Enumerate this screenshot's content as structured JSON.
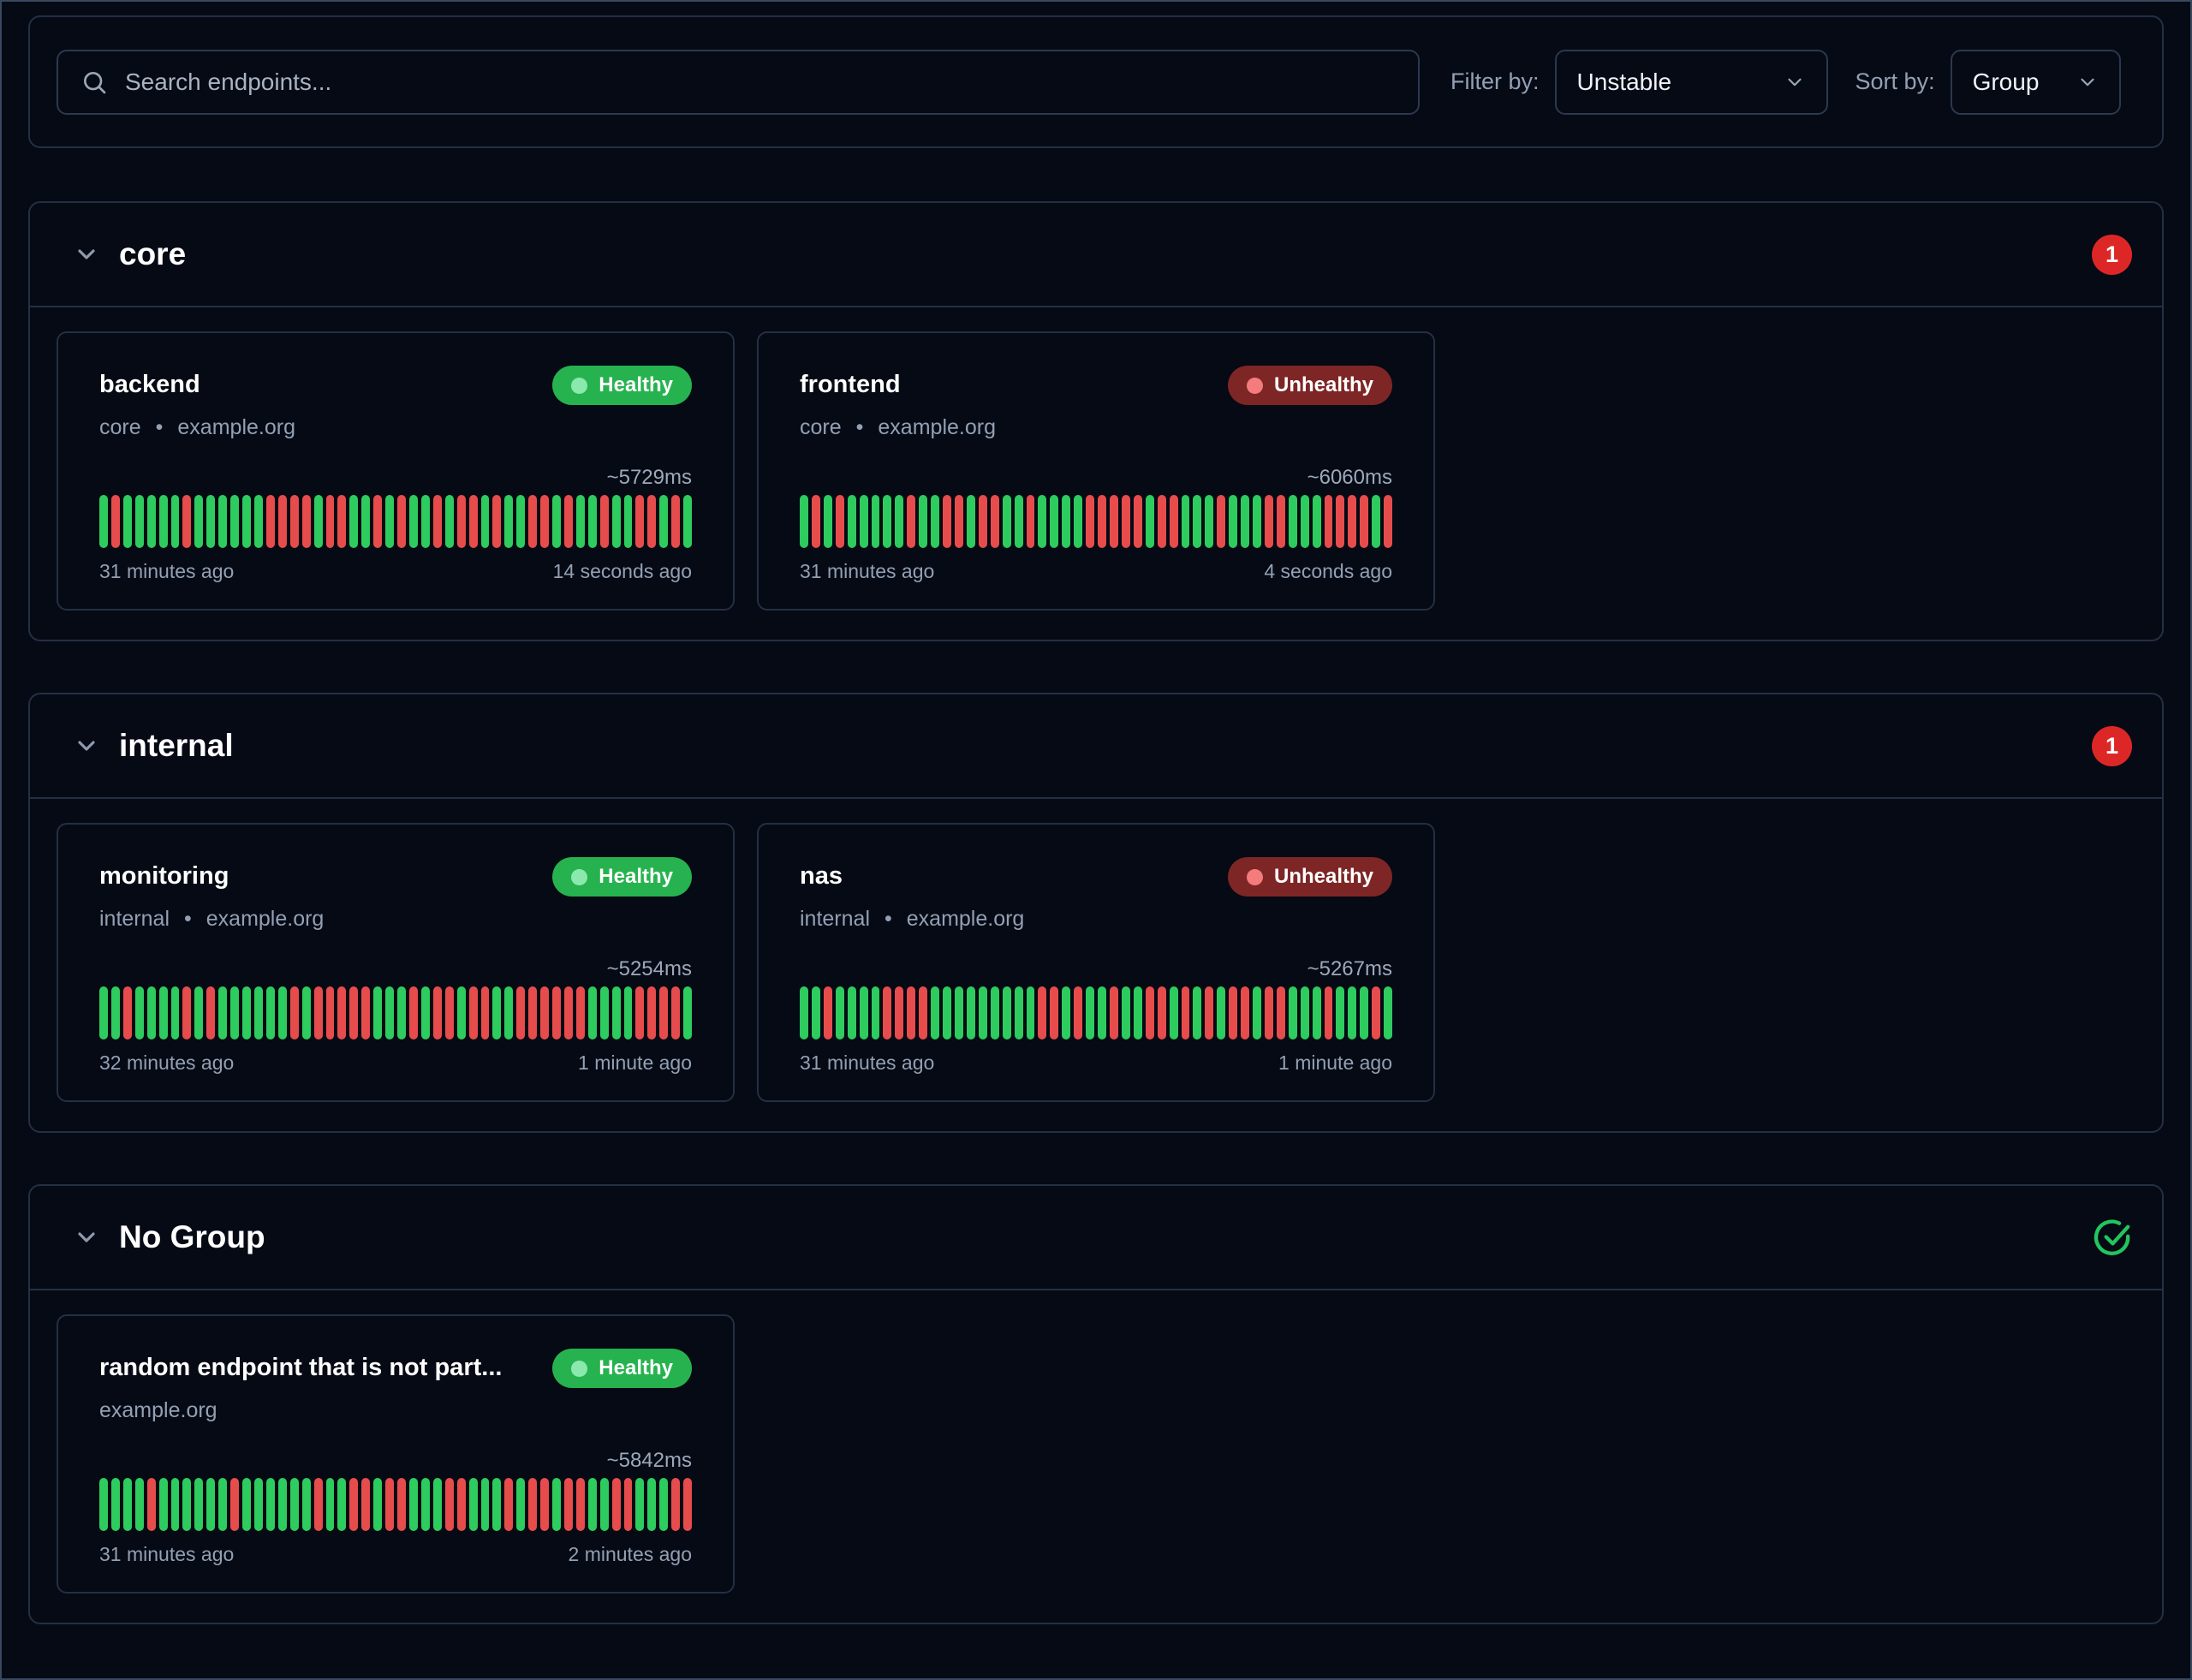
{
  "topbar": {
    "search_placeholder": "Search endpoints...",
    "filter_label": "Filter by:",
    "filter_value": "Unstable",
    "sort_label": "Sort by:",
    "sort_value": "Group"
  },
  "icons": {
    "search": "search-icon",
    "select_chevron": "chevron-down-icon",
    "group_chevron": "chevron-down-icon",
    "no_group_status": "check-circle-icon"
  },
  "colors": {
    "background": "#050a14",
    "border": "#242f46",
    "bar_success": "#2ecc5e",
    "bar_failure": "#e74c4c",
    "badge_healthy": "#26b34f",
    "badge_unhealthy": "#7e2626",
    "count_badge": "#dd2727",
    "check_icon": "#22c55e",
    "muted_text": "#93a0b4"
  },
  "groups": [
    {
      "name": "core",
      "unhealthy_count": "1",
      "cards": [
        {
          "title": "backend",
          "status": "Healthy",
          "group": "core",
          "separator": "•",
          "host": "example.org",
          "avg_response": "~5729ms",
          "oldest": "31 minutes ago",
          "newest": "14 seconds ago",
          "bars": "GRGGGGGRGGGGGGRRRRGRRGGRGRGGRGRRGRGGRRGRGGRGGRRGRG"
        },
        {
          "title": "frontend",
          "status": "Unhealthy",
          "group": "core",
          "separator": "•",
          "host": "example.org",
          "avg_response": "~6060ms",
          "oldest": "31 minutes ago",
          "newest": "4 seconds ago",
          "bars": "GRGRGGGGGRGGRRGRRGGRGGGGRRRRRGRRGGGRGGGRRGGGRRRRGR"
        }
      ]
    },
    {
      "name": "internal",
      "unhealthy_count": "1",
      "cards": [
        {
          "title": "monitoring",
          "status": "Healthy",
          "group": "internal",
          "separator": "•",
          "host": "example.org",
          "avg_response": "~5254ms",
          "oldest": "32 minutes ago",
          "newest": "1 minute ago",
          "bars": "GGRGGGGRGRGGGGGGRGRRRRRGGGRGRRGRRGGRRRRRRGGGGRRRRG"
        },
        {
          "title": "nas",
          "status": "Unhealthy",
          "group": "internal",
          "separator": "•",
          "host": "example.org",
          "avg_response": "~5267ms",
          "oldest": "31 minutes ago",
          "newest": "1 minute ago",
          "bars": "GGRGGGGRRRRGGGGGGGGGRRGRGGRGGRRGRGRGRRGRRGGGRGGGRG"
        }
      ]
    },
    {
      "name": "No Group",
      "all_healthy": true,
      "cards": [
        {
          "title": "random endpoint that is not part...",
          "status": "Healthy",
          "host": "example.org",
          "avg_response": "~5842ms",
          "oldest": "31 minutes ago",
          "newest": "2 minutes ago",
          "bars": "GGGGRGGGGGGRGGGGGGRGGRRGRRGGGRRGGGRGRRGRRGGRRGGGRR"
        }
      ]
    }
  ]
}
